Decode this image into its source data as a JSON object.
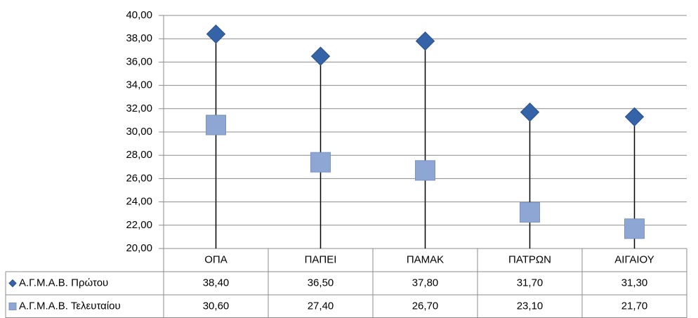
{
  "chart_data": {
    "type": "line",
    "categories": [
      "ΟΠΑ",
      "ΠΑΠΕΙ",
      "ΠΑΜΑΚ",
      "ΠΑΤΡΩΝ",
      "ΑΙΓΑΙΟΥ"
    ],
    "series": [
      {
        "name": "Α.Γ.Μ.Α.Β. Πρώτου",
        "color": "#3563a8",
        "marker": "diamond",
        "values": [
          38.4,
          36.5,
          37.8,
          31.7,
          31.3
        ],
        "value_labels": [
          "38,40",
          "36,50",
          "37,80",
          "31,70",
          "31,30"
        ]
      },
      {
        "name": "Α.Γ.Μ.Α.Β. Τελευταίου",
        "color": "#8da6d4",
        "marker": "square",
        "values": [
          30.6,
          27.4,
          26.7,
          23.1,
          21.7
        ],
        "value_labels": [
          "30,60",
          "27,40",
          "26,70",
          "23,10",
          "21,70"
        ]
      }
    ],
    "ylim": [
      20,
      40
    ],
    "yticks": [
      {
        "value": 20,
        "label": "20,00"
      },
      {
        "value": 22,
        "label": "22,00"
      },
      {
        "value": 24,
        "label": "24,00"
      },
      {
        "value": 26,
        "label": "26,00"
      },
      {
        "value": 28,
        "label": "28,00"
      },
      {
        "value": 30,
        "label": "30,00"
      },
      {
        "value": 32,
        "label": "32,00"
      },
      {
        "value": 34,
        "label": "34,00"
      },
      {
        "value": 36,
        "label": "36,00"
      },
      {
        "value": 38,
        "label": "38,00"
      },
      {
        "value": 40,
        "label": "40,00"
      }
    ],
    "grid": true,
    "drop_lines": true,
    "data_table": true
  }
}
